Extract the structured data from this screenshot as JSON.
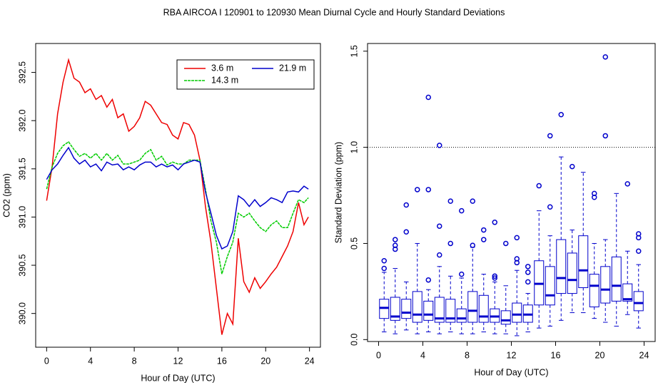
{
  "title": "RBA   AIRCOA I   120901 to 120930   Mean Diurnal Cycle and Hourly Standard Deviations",
  "chart_data": [
    {
      "type": "line",
      "xlabel": "Hour of Day (UTC)",
      "ylabel": "CO2 (ppm)",
      "xlim": [
        -1,
        25
      ],
      "xticks": [
        0,
        4,
        8,
        12,
        16,
        20,
        24
      ],
      "ylim": [
        389.65,
        392.8
      ],
      "yticks": [
        {
          "value": 390,
          "label": "390.0"
        },
        390.5,
        {
          "value": 391,
          "label": "391.0"
        },
        391.5,
        {
          "value": 392,
          "label": "392.0"
        },
        392.5
      ],
      "legend": "top-right",
      "x": [
        0,
        0.5,
        1,
        1.5,
        2,
        2.5,
        3,
        3.5,
        4,
        4.5,
        5,
        5.5,
        6,
        6.5,
        7,
        7.5,
        8,
        8.5,
        9,
        9.5,
        10,
        10.5,
        11,
        11.5,
        12,
        12.5,
        13,
        13.5,
        14,
        14.5,
        15,
        15.5,
        16,
        16.5,
        17,
        17.5,
        18,
        18.5,
        19,
        19.5,
        20,
        20.5,
        21,
        21.5,
        22,
        22.5,
        23,
        23.5,
        23.9
      ],
      "series": [
        {
          "name": "3.6 m",
          "color": "#ee0000",
          "linestyle": "solid",
          "values": [
            391.17,
            391.52,
            392.07,
            392.4,
            392.63,
            392.44,
            392.4,
            392.29,
            392.33,
            392.22,
            392.26,
            392.14,
            392.22,
            392.03,
            392.07,
            391.89,
            391.94,
            392.03,
            392.2,
            392.16,
            392.07,
            391.98,
            391.96,
            391.85,
            391.81,
            391.98,
            391.96,
            391.85,
            391.59,
            391.11,
            390.74,
            390.26,
            389.78,
            390.0,
            389.89,
            390.78,
            390.33,
            390.22,
            390.37,
            390.26,
            390.33,
            390.41,
            390.48,
            390.59,
            390.7,
            390.85,
            391.15,
            390.92,
            391.0
          ]
        },
        {
          "name": "14.3 m",
          "color": "#00cc00",
          "linestyle": "dashed",
          "values": [
            391.29,
            391.52,
            391.66,
            391.74,
            391.78,
            391.7,
            391.63,
            391.66,
            391.61,
            391.66,
            391.59,
            391.66,
            391.59,
            391.64,
            391.55,
            391.55,
            391.57,
            391.59,
            391.66,
            391.7,
            391.59,
            391.63,
            391.54,
            391.57,
            391.55,
            391.55,
            391.59,
            391.59,
            391.59,
            391.29,
            390.96,
            390.74,
            390.41,
            390.59,
            390.74,
            391.04,
            391.0,
            391.04,
            390.96,
            390.89,
            390.85,
            390.92,
            390.96,
            390.89,
            390.89,
            391.04,
            391.18,
            391.15,
            391.2
          ]
        },
        {
          "name": "21.9 m",
          "color": "#0000cc",
          "linestyle": "solid",
          "values": [
            391.39,
            391.49,
            391.55,
            391.64,
            391.72,
            391.61,
            391.55,
            391.59,
            391.52,
            391.55,
            391.48,
            391.57,
            391.54,
            391.55,
            391.49,
            391.52,
            391.49,
            391.54,
            391.57,
            391.57,
            391.52,
            391.55,
            391.52,
            391.54,
            391.49,
            391.55,
            391.57,
            391.59,
            391.57,
            391.26,
            391.04,
            390.81,
            390.67,
            390.7,
            390.85,
            391.22,
            391.18,
            391.11,
            391.18,
            391.11,
            391.15,
            391.2,
            391.18,
            391.15,
            391.26,
            391.27,
            391.26,
            391.32,
            391.29
          ]
        }
      ]
    },
    {
      "type": "box",
      "xlabel": "Hour of Day (UTC)",
      "ylabel": "Standard Deviation (ppm)",
      "xlim": [
        -1,
        25
      ],
      "xticks": [
        0,
        4,
        8,
        12,
        16,
        20,
        24
      ],
      "ylim": [
        -0.01,
        1.54
      ],
      "yticks": [
        {
          "value": 0,
          "label": "0.0"
        },
        0.5,
        {
          "value": 1,
          "label": "1.0"
        },
        1.5
      ],
      "reference_line": 1,
      "color": "#0000cc",
      "x": [
        0.5,
        1.5,
        2.5,
        3.5,
        4.5,
        5.5,
        6.5,
        7.5,
        8.5,
        9.5,
        10.5,
        11.5,
        12.5,
        13.5,
        14.5,
        15.5,
        16.5,
        17.5,
        18.5,
        19.5,
        20.5,
        21.5,
        22.5,
        23.5
      ],
      "boxes": [
        {
          "whislo": 0.04,
          "q1": 0.11,
          "med": 0.165,
          "q3": 0.21,
          "whishi": 0.35,
          "fliers": [
            0.37,
            0.41
          ]
        },
        {
          "whislo": 0.03,
          "q1": 0.1,
          "med": 0.12,
          "q3": 0.22,
          "whishi": 0.37,
          "fliers": [
            0.47,
            0.49,
            0.52
          ]
        },
        {
          "whislo": 0.05,
          "q1": 0.11,
          "med": 0.14,
          "q3": 0.21,
          "whishi": 0.3,
          "fliers": [
            0.56,
            0.7
          ]
        },
        {
          "whislo": 0.03,
          "q1": 0.09,
          "med": 0.13,
          "q3": 0.25,
          "whishi": 0.5,
          "fliers": [
            0.78
          ]
        },
        {
          "whislo": 0.04,
          "q1": 0.1,
          "med": 0.13,
          "q3": 0.2,
          "whishi": 0.26,
          "fliers": [
            0.31,
            0.78,
            1.26
          ]
        },
        {
          "whislo": 0.03,
          "q1": 0.09,
          "med": 0.11,
          "q3": 0.22,
          "whishi": 0.38,
          "fliers": [
            0.44,
            0.59,
            1.01
          ]
        },
        {
          "whislo": 0.04,
          "q1": 0.09,
          "med": 0.11,
          "q3": 0.21,
          "whishi": 0.33,
          "fliers": [
            0.5,
            0.72
          ]
        },
        {
          "whislo": 0.03,
          "q1": 0.09,
          "med": 0.11,
          "q3": 0.16,
          "whishi": 0.32,
          "fliers": [
            0.34,
            0.67
          ]
        },
        {
          "whislo": 0.03,
          "q1": 0.09,
          "med": 0.15,
          "q3": 0.25,
          "whishi": 0.48,
          "fliers": [
            0.49,
            0.72
          ]
        },
        {
          "whislo": 0.04,
          "q1": 0.09,
          "med": 0.12,
          "q3": 0.23,
          "whishi": 0.34,
          "fliers": [
            0.52,
            0.57
          ]
        },
        {
          "whislo": 0.03,
          "q1": 0.09,
          "med": 0.12,
          "q3": 0.16,
          "whishi": 0.3,
          "fliers": [
            0.32,
            0.33,
            0.61
          ]
        },
        {
          "whislo": 0.03,
          "q1": 0.08,
          "med": 0.1,
          "q3": 0.15,
          "whishi": 0.28,
          "fliers": [
            0.5
          ]
        },
        {
          "whislo": 0.02,
          "q1": 0.09,
          "med": 0.13,
          "q3": 0.19,
          "whishi": 0.36,
          "fliers": [
            0.4,
            0.42,
            0.53
          ]
        },
        {
          "whislo": 0.04,
          "q1": 0.09,
          "med": 0.13,
          "q3": 0.18,
          "whishi": 0.24,
          "fliers": [
            0.3,
            0.35,
            0.38
          ]
        },
        {
          "whislo": 0.06,
          "q1": 0.18,
          "med": 0.29,
          "q3": 0.41,
          "whishi": 0.67,
          "fliers": [
            0.8
          ]
        },
        {
          "whislo": 0.07,
          "q1": 0.18,
          "med": 0.23,
          "q3": 0.38,
          "whishi": 0.54,
          "fliers": [
            0.69,
            1.06
          ]
        },
        {
          "whislo": 0.1,
          "q1": 0.24,
          "med": 0.32,
          "q3": 0.52,
          "whishi": 0.95,
          "fliers": [
            1.17
          ]
        },
        {
          "whislo": 0.14,
          "q1": 0.24,
          "med": 0.31,
          "q3": 0.45,
          "whishi": 0.57,
          "fliers": [
            0.9
          ]
        },
        {
          "whislo": 0.14,
          "q1": 0.27,
          "med": 0.36,
          "q3": 0.54,
          "whishi": 0.87,
          "fliers": []
        },
        {
          "whislo": 0.11,
          "q1": 0.17,
          "med": 0.28,
          "q3": 0.34,
          "whishi": 0.5,
          "fliers": [
            0.74,
            0.76
          ]
        },
        {
          "whislo": 0.09,
          "q1": 0.19,
          "med": 0.26,
          "q3": 0.38,
          "whishi": 0.52,
          "fliers": [
            1.06,
            1.47
          ]
        },
        {
          "whislo": 0.07,
          "q1": 0.2,
          "med": 0.28,
          "q3": 0.43,
          "whishi": 0.76,
          "fliers": []
        },
        {
          "whislo": 0.13,
          "q1": 0.2,
          "med": 0.21,
          "q3": 0.29,
          "whishi": 0.46,
          "fliers": [
            0.81
          ]
        },
        {
          "whislo": 0.06,
          "q1": 0.15,
          "med": 0.19,
          "q3": 0.25,
          "whishi": 0.39,
          "fliers": [
            0.46,
            0.53,
            0.55
          ]
        }
      ]
    }
  ]
}
